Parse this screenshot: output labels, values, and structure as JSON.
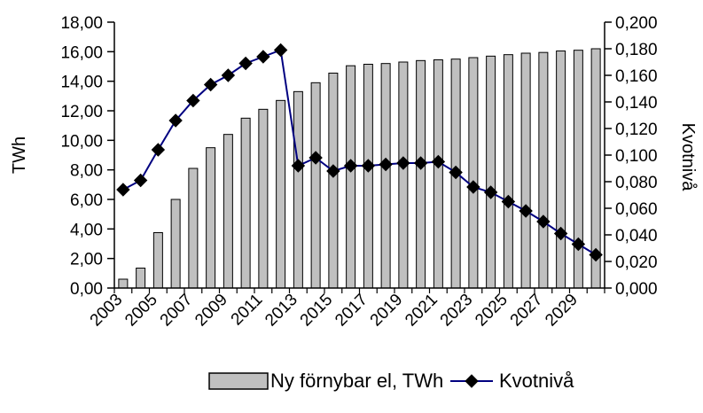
{
  "chart_data": {
    "type": "bar",
    "categories": [
      "2003",
      "2004",
      "2005",
      "2006",
      "2007",
      "2008",
      "2009",
      "2010",
      "2011",
      "2012",
      "2013",
      "2014",
      "2015",
      "2016",
      "2017",
      "2018",
      "2019",
      "2020",
      "2021",
      "2022",
      "2023",
      "2024",
      "2025",
      "2026",
      "2027",
      "2028",
      "2029",
      "2030"
    ],
    "x_tick_labels": [
      "2003",
      "2005",
      "2007",
      "2009",
      "2011",
      "2013",
      "2015",
      "2017",
      "2019",
      "2021",
      "2023",
      "2025",
      "2027",
      "2029"
    ],
    "series": [
      {
        "name": "Ny förnybar el, TWh",
        "type": "bar",
        "axis": "left",
        "color": "#c0c0c0",
        "values": [
          0.6,
          1.35,
          3.75,
          6.0,
          8.1,
          9.5,
          10.4,
          11.5,
          12.1,
          12.7,
          13.3,
          13.9,
          14.55,
          15.05,
          15.15,
          15.2,
          15.3,
          15.4,
          15.45,
          15.5,
          15.6,
          15.7,
          15.8,
          15.9,
          15.95,
          16.05,
          16.1,
          16.2
        ]
      },
      {
        "name": "Kvotnivå",
        "type": "line",
        "axis": "right",
        "color": "#000080",
        "marker": "diamond",
        "values": [
          0.074,
          0.081,
          0.104,
          0.126,
          0.141,
          0.153,
          0.16,
          0.169,
          0.174,
          0.179,
          0.092,
          0.098,
          0.088,
          0.092,
          0.092,
          0.093,
          0.094,
          0.094,
          0.095,
          0.087,
          0.076,
          0.072,
          0.065,
          0.058,
          0.05,
          0.041,
          0.033,
          0.025
        ]
      }
    ],
    "ylabel": "TWh",
    "ylabel_right": "Kvotnivå",
    "ylim": [
      0,
      18
    ],
    "ylim_right": [
      0,
      0.2
    ],
    "y_ticks": [
      "0,00",
      "2,00",
      "4,00",
      "6,00",
      "8,00",
      "10,00",
      "12,00",
      "14,00",
      "16,00",
      "18,00"
    ],
    "y_ticks_right": [
      "0,000",
      "0,020",
      "0,040",
      "0,060",
      "0,080",
      "0,100",
      "0,120",
      "0,140",
      "0,160",
      "0,180",
      "0,200"
    ],
    "grid": false,
    "legend_position": "bottom"
  }
}
